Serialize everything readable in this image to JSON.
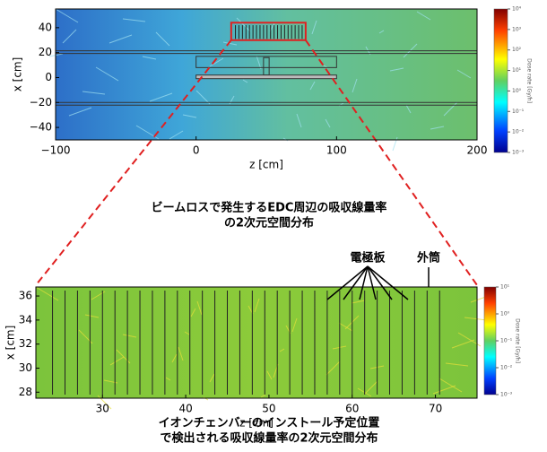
{
  "chart_data": [
    {
      "type": "heatmap",
      "xlabel": "z [cm]",
      "ylabel": "x [cm]",
      "xlim": [
        -100,
        200
      ],
      "ylim": [
        -50,
        55
      ],
      "xticks": [
        {
          "value": -100,
          "label": "−100"
        },
        0,
        100,
        200
      ],
      "yticks": [
        {
          "value": -40,
          "label": "−40"
        },
        {
          "value": -20,
          "label": "−20"
        },
        0,
        20,
        40
      ],
      "colorbar": {
        "label": "Dose rate [Gy/h]",
        "log": true,
        "lim": [
          0.001,
          10000
        ],
        "ticks": [
          {
            "value": 0.001,
            "label": "10⁻³"
          },
          {
            "value": 0.01,
            "label": "10⁻²"
          },
          {
            "value": 0.1,
            "label": "10⁻¹"
          },
          {
            "value": 1,
            "label": "10⁰"
          },
          {
            "value": 10,
            "label": "10¹"
          },
          {
            "value": 100,
            "label": "10²"
          },
          {
            "value": 1000,
            "label": "10³"
          },
          {
            "value": 10000,
            "label": "10⁴"
          }
        ]
      },
      "caption": [
        "ビームロスで発生するEDC周辺の吸収線量率",
        "の2次元空間分布"
      ]
    },
    {
      "type": "heatmap",
      "xlabel": "z [cm]",
      "ylabel": "x [cm]",
      "xlim": [
        22,
        75
      ],
      "ylim": [
        27.5,
        36.75
      ],
      "xticks": [
        30,
        40,
        50,
        60,
        70
      ],
      "yticks": [
        28,
        30,
        32,
        34,
        36
      ],
      "colorbar": {
        "label": "Dose rate [Gy/h]",
        "log": true,
        "lim": [
          0.001,
          10
        ],
        "ticks": [
          {
            "value": 0.001,
            "label": "10⁻³"
          },
          {
            "value": 0.01,
            "label": "10⁻²"
          },
          {
            "value": 0.1,
            "label": "10⁻¹"
          },
          {
            "value": 1,
            "label": "10⁰"
          },
          {
            "value": 10,
            "label": "10¹"
          }
        ]
      },
      "annotations": [
        "電極板",
        "外筒"
      ],
      "caption": [
        "イオンチェンバーのインストール予定位置",
        "で検出される吸収線量率の2次元空間分布"
      ]
    }
  ]
}
